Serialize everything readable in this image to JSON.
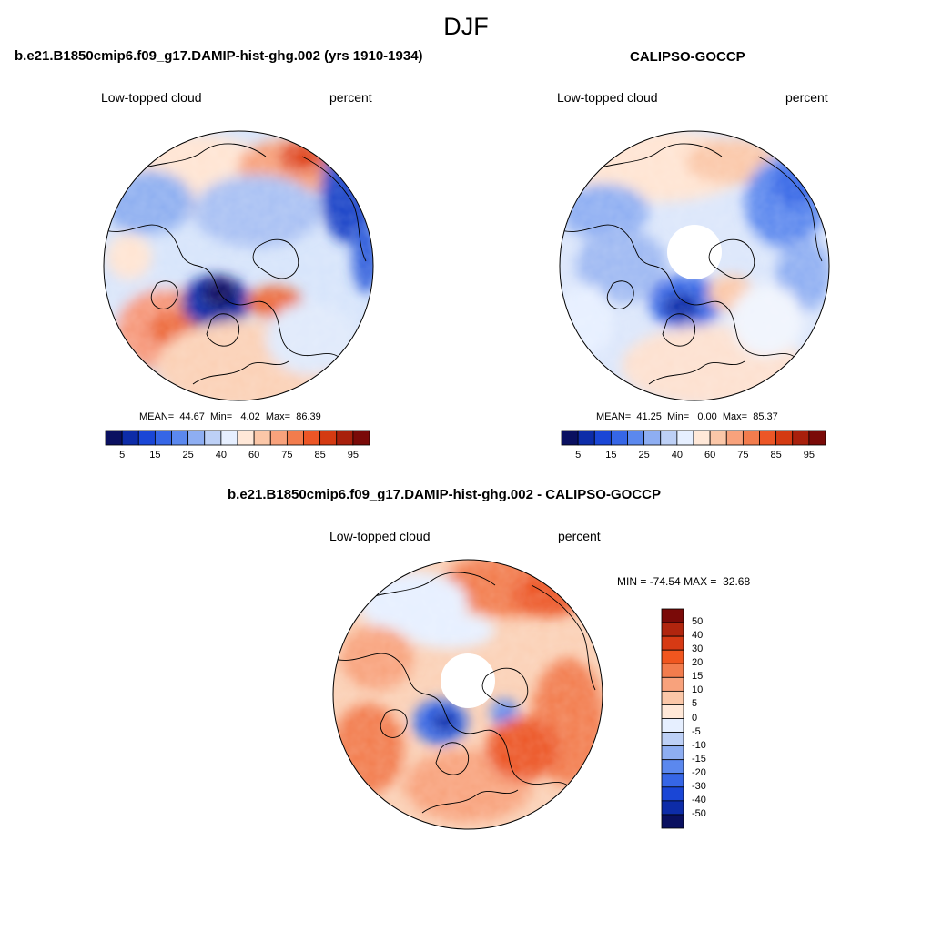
{
  "figure": {
    "title": "DJF"
  },
  "panels": {
    "model": {
      "title": "b.e21.B1850cmip6.f09_g17.DAMIP-hist-ghg.002 (yrs 1910-1934)",
      "left_label": "Low-topped cloud",
      "right_label": "percent",
      "stats": {
        "mean_label": "MEAN=",
        "mean": "44.67",
        "min_label": "Min=",
        "min": "4.02",
        "max_label": "Max=",
        "max": "86.39"
      }
    },
    "obs": {
      "title": "CALIPSO-GOCCP",
      "left_label": "Low-topped cloud",
      "right_label": "percent",
      "stats": {
        "mean_label": "MEAN=",
        "mean": "41.25",
        "min_label": "Min=",
        "min": "0.00",
        "max_label": "Max=",
        "max": "85.37"
      }
    },
    "diff": {
      "title": "b.e21.B1850cmip6.f09_g17.DAMIP-hist-ghg.002 - CALIPSO-GOCCP",
      "left_label": "Low-topped cloud",
      "right_label": "percent",
      "stats": {
        "min_label": "MIN =",
        "min": "-74.54",
        "max_label": "MAX =",
        "max": "32.68"
      }
    }
  },
  "colorbars": {
    "field": {
      "tick_labels": [
        "5",
        "15",
        "25",
        "40",
        "60",
        "75",
        "85",
        "95"
      ],
      "colors": [
        "#0a1060",
        "#0d2ca8",
        "#1a46d6",
        "#3666e6",
        "#5b88ee",
        "#8eaef2",
        "#bdd0f6",
        "#e6efff",
        "#ffe8d8",
        "#fbc7a8",
        "#f8a27c",
        "#f27c4d",
        "#ec5626",
        "#d43a12",
        "#a8200c",
        "#7a0a08"
      ]
    },
    "diff": {
      "tick_labels": [
        "50",
        "40",
        "30",
        "20",
        "15",
        "10",
        "5",
        "0",
        "-5",
        "-10",
        "-15",
        "-20",
        "-30",
        "-40",
        "-50"
      ],
      "colors": [
        "#7a0a08",
        "#b0250e",
        "#d63a14",
        "#f0561f",
        "#f27c4d",
        "#f8a27c",
        "#fbc7a8",
        "#ffe8d8",
        "#e6efff",
        "#bdd0f6",
        "#8eaef2",
        "#5b88ee",
        "#3666e6",
        "#1a46d6",
        "#0d2ca8",
        "#0a1060"
      ]
    }
  },
  "map": {
    "projection": "north polar stereographic",
    "hemisphere": "north",
    "boundary": "circular"
  }
}
